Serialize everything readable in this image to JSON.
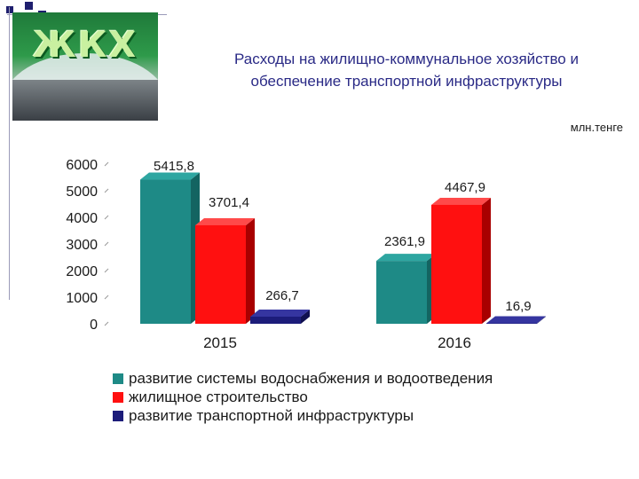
{
  "header": {
    "logo_text": "ЖКХ",
    "title_line1": "Расходы на жилищно-коммунальное хозяйство и",
    "title_line2": "обеспечение транспортной инфраструктуры",
    "unit": "млн.тенге"
  },
  "colors": {
    "series_1": "#1e8a86",
    "series_2": "#ff1010",
    "series_3": "#1c1c7a",
    "title": "#2a2a86",
    "deco": "#1f1f6e"
  },
  "chart_data": {
    "type": "bar",
    "categories": [
      "2015",
      "2016"
    ],
    "series": [
      {
        "name": "развитие системы водоснабжения и водоотведения",
        "values": [
          5415.8,
          2361.9
        ],
        "labels": [
          "5415,8",
          "2361,9"
        ]
      },
      {
        "name": "жилищное строительство",
        "values": [
          3701.4,
          4467.9
        ],
        "labels": [
          "3701,4",
          "4467,9"
        ]
      },
      {
        "name": "развитие транспортной инфраструктуры",
        "values": [
          266.7,
          16.9
        ],
        "labels": [
          "266,7",
          "16,9"
        ]
      }
    ],
    "y_ticks": [
      "0",
      "1000",
      "2000",
      "3000",
      "4000",
      "5000",
      "6000"
    ],
    "ylim": [
      0,
      6000
    ],
    "legend_position": "bottom",
    "style": "3d"
  }
}
